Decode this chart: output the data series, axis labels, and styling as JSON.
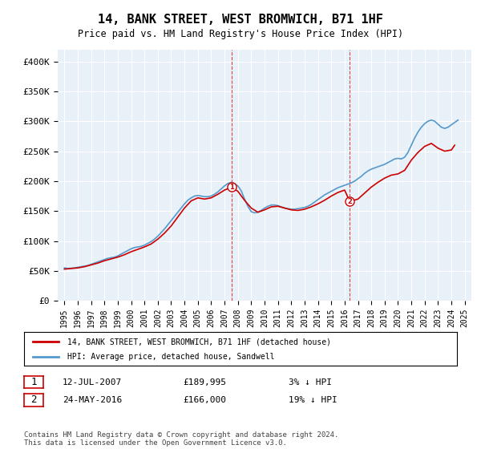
{
  "title": "14, BANK STREET, WEST BROMWICH, B71 1HF",
  "subtitle": "Price paid vs. HM Land Registry's House Price Index (HPI)",
  "ylabel": "",
  "xlabel": "",
  "ylim": [
    0,
    420000
  ],
  "yticks": [
    0,
    50000,
    100000,
    150000,
    200000,
    250000,
    300000,
    350000,
    400000
  ],
  "ytick_labels": [
    "£0",
    "£50K",
    "£100K",
    "£150K",
    "£200K",
    "£250K",
    "£300K",
    "£350K",
    "£400K"
  ],
  "background_color": "#e8f0f8",
  "plot_background": "#e8f0f8",
  "red_line_color": "#cc0000",
  "blue_line_color": "#5599cc",
  "marker1_year": 2007.54,
  "marker1_value": 189995,
  "marker2_year": 2016.39,
  "marker2_value": 166000,
  "legend_label_red": "14, BANK STREET, WEST BROMWICH, B71 1HF (detached house)",
  "legend_label_blue": "HPI: Average price, detached house, Sandwell",
  "annotation1": [
    "1",
    "12-JUL-2007",
    "£189,995",
    "3% ↓ HPI"
  ],
  "annotation2": [
    "2",
    "24-MAY-2016",
    "£166,000",
    "19% ↓ HPI"
  ],
  "footer": "Contains HM Land Registry data © Crown copyright and database right 2024.\nThis data is licensed under the Open Government Licence v3.0.",
  "hpi_data": {
    "years": [
      1995.0,
      1995.25,
      1995.5,
      1995.75,
      1996.0,
      1996.25,
      1996.5,
      1996.75,
      1997.0,
      1997.25,
      1997.5,
      1997.75,
      1998.0,
      1998.25,
      1998.5,
      1998.75,
      1999.0,
      1999.25,
      1999.5,
      1999.75,
      2000.0,
      2000.25,
      2000.5,
      2000.75,
      2001.0,
      2001.25,
      2001.5,
      2001.75,
      2002.0,
      2002.25,
      2002.5,
      2002.75,
      2003.0,
      2003.25,
      2003.5,
      2003.75,
      2004.0,
      2004.25,
      2004.5,
      2004.75,
      2005.0,
      2005.25,
      2005.5,
      2005.75,
      2006.0,
      2006.25,
      2006.5,
      2006.75,
      2007.0,
      2007.25,
      2007.5,
      2007.75,
      2008.0,
      2008.25,
      2008.5,
      2008.75,
      2009.0,
      2009.25,
      2009.5,
      2009.75,
      2010.0,
      2010.25,
      2010.5,
      2010.75,
      2011.0,
      2011.25,
      2011.5,
      2011.75,
      2012.0,
      2012.25,
      2012.5,
      2012.75,
      2013.0,
      2013.25,
      2013.5,
      2013.75,
      2014.0,
      2014.25,
      2014.5,
      2014.75,
      2015.0,
      2015.25,
      2015.5,
      2015.75,
      2016.0,
      2016.25,
      2016.5,
      2016.75,
      2017.0,
      2017.25,
      2017.5,
      2017.75,
      2018.0,
      2018.25,
      2018.5,
      2018.75,
      2019.0,
      2019.25,
      2019.5,
      2019.75,
      2020.0,
      2020.25,
      2020.5,
      2020.75,
      2021.0,
      2021.25,
      2021.5,
      2021.75,
      2022.0,
      2022.25,
      2022.5,
      2022.75,
      2023.0,
      2023.25,
      2023.5,
      2023.75,
      2024.0,
      2024.25,
      2024.5
    ],
    "values": [
      55000,
      54000,
      54500,
      55000,
      56000,
      57000,
      58000,
      59000,
      61000,
      63000,
      65000,
      67000,
      69000,
      71000,
      72000,
      73000,
      75000,
      78000,
      81000,
      84000,
      87000,
      89000,
      90000,
      91000,
      93000,
      96000,
      99000,
      103000,
      108000,
      114000,
      120000,
      127000,
      134000,
      141000,
      148000,
      155000,
      162000,
      168000,
      172000,
      175000,
      176000,
      175000,
      174000,
      174000,
      175000,
      178000,
      182000,
      187000,
      192000,
      196000,
      198000,
      196000,
      192000,
      184000,
      170000,
      158000,
      149000,
      147000,
      148000,
      151000,
      155000,
      158000,
      160000,
      160000,
      159000,
      157000,
      155000,
      154000,
      153000,
      153000,
      154000,
      155000,
      156000,
      158000,
      161000,
      165000,
      169000,
      173000,
      177000,
      180000,
      183000,
      186000,
      189000,
      191000,
      193000,
      195000,
      197000,
      200000,
      204000,
      208000,
      213000,
      217000,
      220000,
      222000,
      224000,
      226000,
      228000,
      231000,
      234000,
      237000,
      238000,
      237000,
      240000,
      248000,
      260000,
      272000,
      282000,
      290000,
      296000,
      300000,
      302000,
      300000,
      295000,
      290000,
      288000,
      290000,
      294000,
      298000,
      302000
    ]
  },
  "red_data": {
    "years": [
      1995.0,
      1995.5,
      1996.0,
      1996.5,
      1997.0,
      1997.5,
      1998.0,
      1998.5,
      1999.0,
      1999.5,
      2000.0,
      2000.5,
      2001.0,
      2001.5,
      2002.0,
      2002.5,
      2003.0,
      2003.5,
      2004.0,
      2004.5,
      2005.0,
      2005.5,
      2006.0,
      2006.5,
      2007.0,
      2007.54,
      2008.0,
      2008.5,
      2009.0,
      2009.5,
      2010.0,
      2010.5,
      2011.0,
      2011.5,
      2012.0,
      2012.5,
      2013.0,
      2013.5,
      2014.0,
      2014.5,
      2015.0,
      2015.5,
      2016.0,
      2016.39,
      2017.0,
      2017.5,
      2018.0,
      2018.5,
      2019.0,
      2019.5,
      2020.0,
      2020.5,
      2021.0,
      2021.5,
      2022.0,
      2022.5,
      2023.0,
      2023.5,
      2024.0,
      2024.25
    ],
    "values": [
      53000,
      54000,
      55000,
      57000,
      60000,
      63000,
      67000,
      70000,
      73000,
      77000,
      82000,
      86000,
      90000,
      95000,
      103000,
      113000,
      125000,
      140000,
      155000,
      167000,
      172000,
      170000,
      172000,
      178000,
      185000,
      189995,
      183000,
      168000,
      155000,
      148000,
      152000,
      157000,
      158000,
      155000,
      152000,
      151000,
      153000,
      157000,
      162000,
      168000,
      175000,
      181000,
      185000,
      166000,
      170000,
      180000,
      190000,
      198000,
      205000,
      210000,
      212000,
      218000,
      235000,
      248000,
      258000,
      263000,
      255000,
      250000,
      252000,
      260000
    ]
  }
}
